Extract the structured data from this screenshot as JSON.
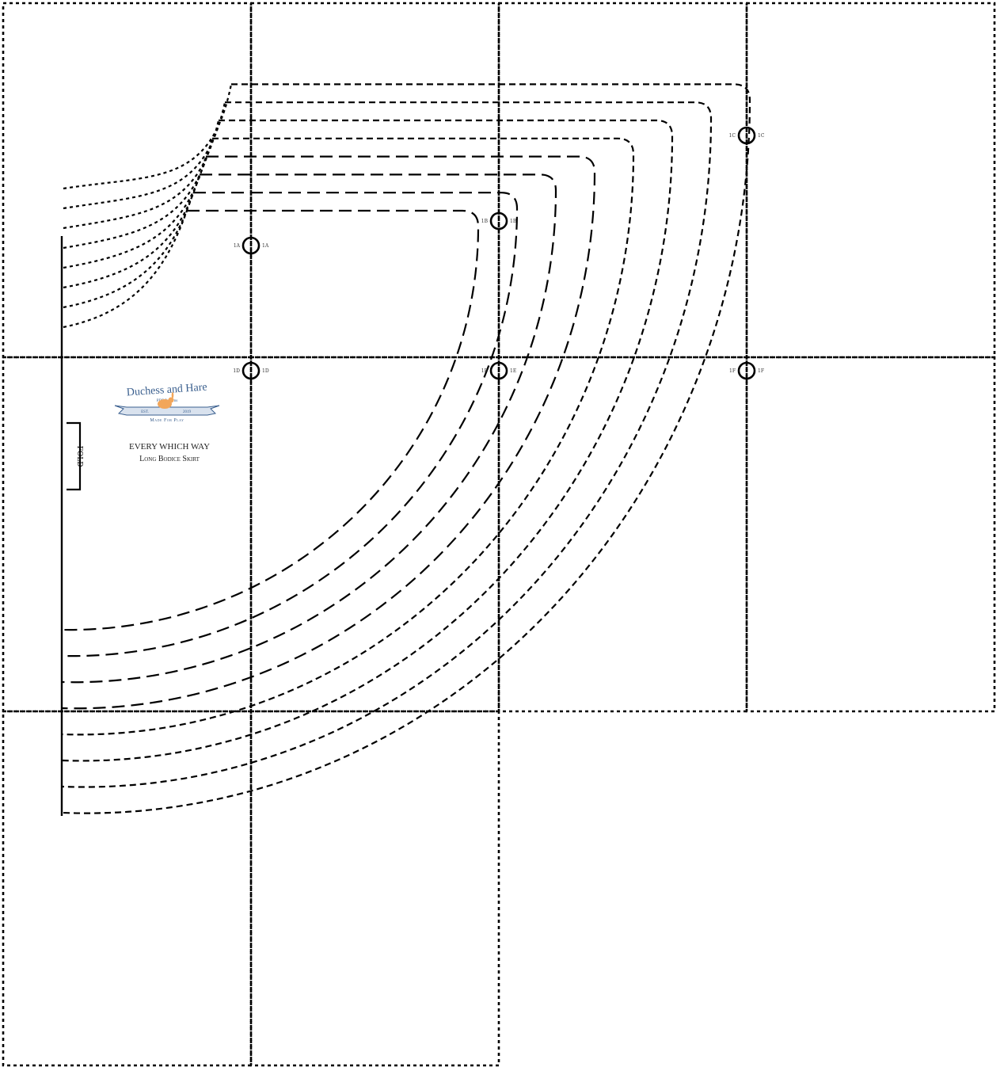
{
  "pattern": {
    "title": "EVERY WHICH WAY",
    "subtitle": "Long Bodice Skirt",
    "fold_label": "FOLD"
  },
  "brand": {
    "name": "Duchess and Hare",
    "tagline": "PDF Patterns",
    "est": "EST.",
    "year": "2019",
    "motto": "Made For Play",
    "colors": {
      "ink": "#3a5f8e",
      "ribbon": "#d9e2ee",
      "hare": "#f2a65a"
    }
  },
  "markers": [
    {
      "id": "1A",
      "label_left": "1A",
      "label_right": "1A"
    },
    {
      "id": "1B",
      "label_left": "1B",
      "label_right": "1B"
    },
    {
      "id": "1C",
      "label_left": "1C",
      "label_right": "1C"
    },
    {
      "id": "1D",
      "label_left": "1D",
      "label_right": "1D"
    },
    {
      "id": "1E",
      "label_left": "1E",
      "label_right": "1E"
    },
    {
      "id": "1F",
      "label_left": "1F",
      "label_right": "1F"
    }
  ],
  "size_lines": {
    "count": 8,
    "waist_style": "short dash",
    "hem_style": "long dash"
  }
}
